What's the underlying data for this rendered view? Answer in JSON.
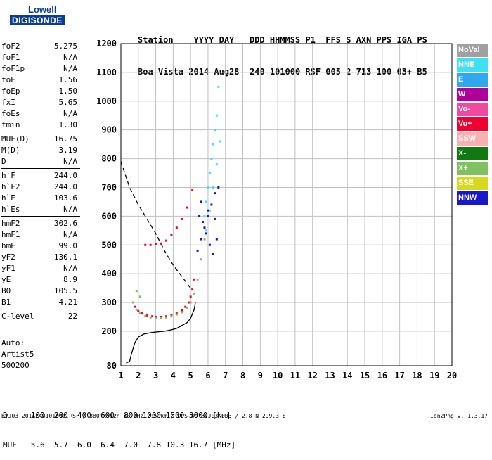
{
  "logo": {
    "top": "Lowell",
    "bottom": "DIGISONDE"
  },
  "header": {
    "line1": "Station    YYYY DAY   DDD HHMMSS P1  FFS S AXN PPS IGA PS",
    "line2": "Boa Vista 2014 Aug28  240 101000 RSF 005 2 713 100 03+ B5"
  },
  "params": [
    {
      "name": "foF2",
      "value": "5.275"
    },
    {
      "name": "foF1",
      "value": "N/A"
    },
    {
      "name": "foF1p",
      "value": "N/A"
    },
    {
      "name": "foE",
      "value": "1.56"
    },
    {
      "name": "foEp",
      "value": "1.50"
    },
    {
      "name": "fxI",
      "value": "5.65"
    },
    {
      "name": "foEs",
      "value": "N/A"
    },
    {
      "name": "fmin",
      "value": "1.30"
    },
    {
      "name": "MUF(D)",
      "value": "16.75"
    },
    {
      "name": "M(D)",
      "value": "3.19"
    },
    {
      "name": "D",
      "value": "N/A"
    },
    {
      "name": "h`F",
      "value": "244.0"
    },
    {
      "name": "h`F2",
      "value": "244.0"
    },
    {
      "name": "h`E",
      "value": "103.6"
    },
    {
      "name": "h`Es",
      "value": "N/A"
    },
    {
      "name": "hmF2",
      "value": "302.6"
    },
    {
      "name": "hmF1",
      "value": "N/A"
    },
    {
      "name": "hmE",
      "value": "99.0"
    },
    {
      "name": "yF2",
      "value": "130.1"
    },
    {
      "name": "yF1",
      "value": "N/A"
    },
    {
      "name": "yE",
      "value": "8.9"
    },
    {
      "name": "B0",
      "value": "105.5"
    },
    {
      "name": "B1",
      "value": "4.21"
    },
    {
      "name": "C-level",
      "value": "22"
    }
  ],
  "auto": {
    "line1": "Auto:",
    "line2": "Artist5",
    "line3": "500200"
  },
  "legend": [
    {
      "label": "NoVal",
      "color": "#a0a0a0"
    },
    {
      "label": "NNE",
      "color": "#40e0f0"
    },
    {
      "label": "E",
      "color": "#30a8f0"
    },
    {
      "label": "W",
      "color": "#b0009a"
    },
    {
      "label": "Vo-",
      "color": "#f04aa0"
    },
    {
      "label": "Vo+",
      "color": "#f00030"
    },
    {
      "label": "SSW",
      "color": "#f8b0b0"
    },
    {
      "label": "X-",
      "color": "#107a10"
    },
    {
      "label": "X+",
      "color": "#80c060"
    },
    {
      "label": "SSE",
      "color": "#d8d820"
    },
    {
      "label": "NNW",
      "color": "#1818c8"
    }
  ],
  "muf_table": {
    "line1": "D     100  200  400  600  800 1000 1500 3000 [km]",
    "line2": "MUF   5.6  5.7  6.0  6.4  7.0  7.8 10.3 16.7 [MHz]"
  },
  "footer": {
    "left": "BVJ03_2014240101000.RSF / 380fx512h 50 kHz 2.5 km / DPS-4D BVJ03 003 / 2.8 N 299.3 E",
    "right": "Ion2Png v. 1.3.17"
  },
  "chart_data": {
    "type": "scatter",
    "xlim": [
      1,
      20
    ],
    "ylim": [
      80,
      1200
    ],
    "x_ticks": [
      1,
      2,
      3,
      4,
      5,
      6,
      7,
      8,
      9,
      10,
      11,
      12,
      13,
      14,
      15,
      16,
      17,
      18,
      19,
      20
    ],
    "y_ticks": [
      80,
      200,
      300,
      400,
      500,
      600,
      700,
      800,
      900,
      1000,
      1100,
      1200
    ],
    "grid": true,
    "series": [
      {
        "name": "Vo+",
        "color": "#f00030",
        "x": [
          1.8,
          2.0,
          2.2,
          2.5,
          2.8,
          3.0,
          3.3,
          3.6,
          3.9,
          4.2,
          4.5,
          4.7,
          4.9,
          5.0,
          5.1,
          5.2,
          2.4,
          2.7,
          3.0,
          3.3,
          3.6,
          3.9,
          4.2,
          4.5,
          4.8,
          5.1
        ],
        "y": [
          285,
          270,
          262,
          255,
          252,
          250,
          250,
          252,
          256,
          262,
          272,
          285,
          300,
          320,
          345,
          380,
          500,
          500,
          502,
          505,
          515,
          535,
          560,
          590,
          630,
          690
        ]
      },
      {
        "name": "X+",
        "color": "#80c060",
        "x": [
          1.7,
          1.9,
          2.1,
          2.4,
          2.7,
          3.0,
          3.3,
          3.6,
          3.9,
          4.2,
          4.5,
          4.8,
          5.0,
          5.2,
          5.4,
          5.6,
          5.8,
          1.9,
          2.1
        ],
        "y": [
          300,
          275,
          262,
          252,
          248,
          246,
          246,
          248,
          252,
          258,
          266,
          280,
          300,
          330,
          380,
          450,
          520,
          340,
          320
        ]
      },
      {
        "name": "NNE",
        "color": "#40e0f0",
        "x": [
          5.8,
          5.9,
          6.0,
          6.1,
          6.2,
          6.3,
          6.4,
          6.5,
          6.6,
          5.9,
          6.1,
          6.3,
          6.5,
          6.7
        ],
        "y": [
          600,
          650,
          700,
          750,
          800,
          850,
          900,
          950,
          1050,
          550,
          620,
          700,
          780,
          860
        ]
      },
      {
        "name": "NNW",
        "color": "#1818c8",
        "x": [
          5.4,
          5.6,
          5.8,
          6.0,
          6.2,
          6.4,
          6.6,
          5.5,
          5.7,
          5.9,
          6.1,
          6.3,
          6.5,
          5.6,
          6.0,
          6.4
        ],
        "y": [
          480,
          520,
          560,
          600,
          640,
          680,
          700,
          600,
          580,
          540,
          500,
          470,
          520,
          650,
          620,
          590
        ]
      }
    ],
    "lines": [
      {
        "name": "profile",
        "style": "solid",
        "x": [
          1.3,
          1.5,
          1.6,
          1.8,
          2.0,
          2.3,
          2.7,
          3.1,
          3.5,
          3.9,
          4.2,
          4.5,
          4.8,
          5.0,
          5.1,
          5.2,
          5.25,
          5.275
        ],
        "y": [
          90,
          95,
          120,
          160,
          180,
          190,
          195,
          198,
          200,
          205,
          210,
          220,
          230,
          245,
          260,
          275,
          290,
          302.6
        ]
      },
      {
        "name": "muf",
        "style": "dashed",
        "x": [
          1.0,
          1.5,
          2.0,
          2.5,
          3.0,
          3.5,
          4.0,
          4.5,
          5.0
        ],
        "y": [
          790,
          700,
          640,
          590,
          540,
          480,
          430,
          390,
          350
        ]
      }
    ]
  }
}
